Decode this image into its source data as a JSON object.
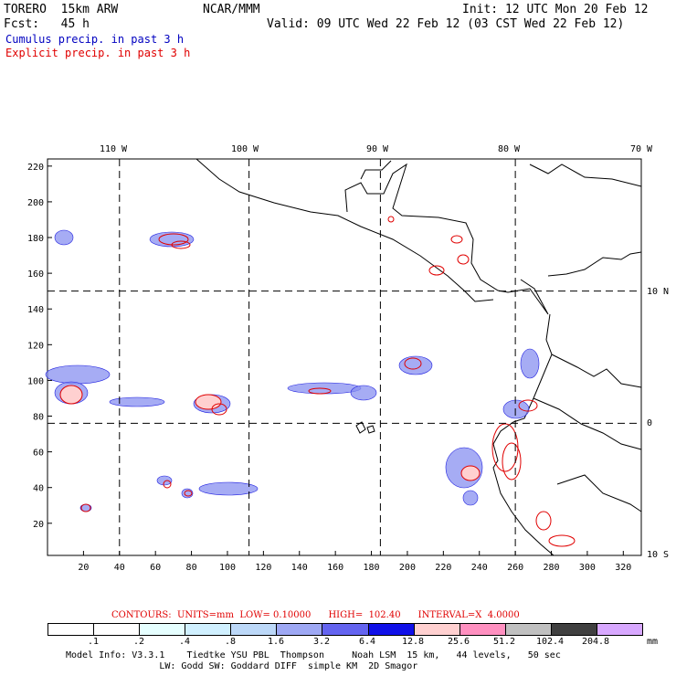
{
  "header": {
    "model": "TORERO  15km ARW",
    "org": "NCAR/MMM",
    "init": "Init: 12 UTC Mon 20 Feb 12",
    "fcst": "Fcst:   45 h",
    "valid": "Valid: 09 UTC Wed 22 Feb 12 (03 CST Wed 22 Feb 12)",
    "field1": "Cumulus precip. in past 3 h",
    "field2": "Explicit precip. in past 3 h"
  },
  "map": {
    "lon_labels": [
      "110 W",
      "100 W",
      "90 W",
      "80 W",
      "70 W"
    ],
    "lat_labels": [
      "10 N",
      "0",
      "10 S"
    ],
    "y_ticks": [
      "220",
      "200",
      "180",
      "160",
      "140",
      "120",
      "100",
      "80",
      "60",
      "40",
      "20"
    ],
    "x_ticks": [
      "20",
      "40",
      "60",
      "80",
      "100",
      "120",
      "140",
      "160",
      "180",
      "200",
      "220",
      "240",
      "260",
      "280",
      "300",
      "320"
    ],
    "grid_x": [
      40,
      112,
      185,
      260
    ],
    "grid_y": [
      150,
      76
    ],
    "x_range": [
      0,
      330
    ],
    "y_range": [
      2,
      224
    ],
    "cumulus_color": "#2020e0",
    "explicit_color": "#e00000"
  },
  "contours": {
    "note": "CONTOURS:  UNITS=mm  LOW= 0.10000      HIGH=  102.40      INTERVAL=X  4.0000"
  },
  "colorbar": {
    "labels": [
      ".1",
      ".2",
      ".4",
      ".8",
      "1.6",
      "3.2",
      "6.4",
      "12.8",
      "25.6",
      "51.2",
      "102.4",
      "204.8"
    ],
    "unit": "mm",
    "colors": [
      "#ffffff",
      "#ffffff",
      "#e6ffff",
      "#d0f0ff",
      "#bcd8f8",
      "#9ea8f4",
      "#6464f0",
      "#1010e8",
      "#ffd0d0",
      "#ff90c0",
      "#c0c0c0",
      "#404040",
      "#d8a8ff"
    ]
  },
  "footer": {
    "line1": "Model Info: V3.3.1    Tiedtke YSU PBL  Thompson     Noah LSM  15 km,   44 levels,   50 sec",
    "line2": "                 LW: Godd SW: Goddard DIFF  simple KM  2D Smagor"
  }
}
